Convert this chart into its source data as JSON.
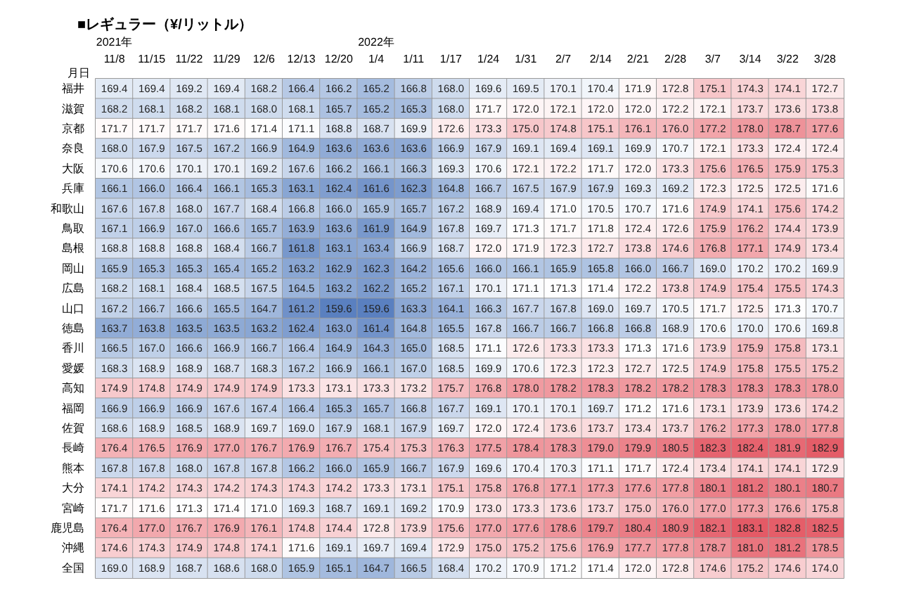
{
  "chart_data": {
    "type": "heatmap",
    "title": "■レギュラー（¥/リットル）",
    "xlabel": "月日",
    "data_labels": true,
    "categories": [
      "2021年\n11/8",
      "11/15",
      "11/22",
      "11/29",
      "12/6",
      "12/13",
      "12/20",
      "2022年\n1/4",
      "1/11",
      "1/17",
      "1/24",
      "1/31",
      "2/7",
      "2/14",
      "2/21",
      "2/28",
      "3/7",
      "3/14",
      "3/22",
      "3/28"
    ],
    "y_categories": [
      "福井",
      "滋賀",
      "京都",
      "奈良",
      "大阪",
      "兵庫",
      "和歌山",
      "鳥取",
      "島根",
      "岡山",
      "広島",
      "山口",
      "徳島",
      "香川",
      "愛媛",
      "高知",
      "福岡",
      "佐賀",
      "長崎",
      "熊本",
      "大分",
      "宮崎",
      "鹿児島",
      "沖縄",
      "全国"
    ],
    "cells": [
      [
        169.4,
        169.4,
        169.2,
        169.4,
        168.2,
        166.4,
        166.2,
        165.2,
        166.8,
        168.0,
        169.6,
        169.5,
        170.1,
        170.4,
        171.9,
        172.8,
        175.1,
        174.3,
        174.1,
        172.7
      ],
      [
        168.2,
        168.1,
        168.2,
        168.1,
        168.0,
        168.1,
        165.7,
        165.2,
        165.3,
        168.0,
        171.7,
        172.0,
        172.1,
        172.0,
        172.0,
        172.2,
        172.1,
        173.7,
        173.6,
        173.8
      ],
      [
        171.7,
        171.7,
        171.7,
        171.6,
        171.4,
        171.1,
        168.8,
        168.7,
        169.9,
        172.6,
        173.3,
        175.0,
        174.8,
        175.1,
        176.1,
        176.0,
        177.2,
        178.0,
        178.7,
        177.6
      ],
      [
        168.0,
        167.9,
        167.5,
        167.2,
        166.9,
        164.9,
        163.6,
        163.6,
        163.6,
        166.9,
        167.9,
        169.1,
        169.4,
        169.1,
        169.9,
        170.7,
        172.1,
        173.3,
        172.4,
        172.4
      ],
      [
        170.6,
        170.6,
        170.1,
        170.1,
        169.2,
        167.6,
        166.2,
        166.1,
        166.3,
        169.3,
        170.6,
        172.1,
        172.2,
        171.7,
        172.0,
        173.3,
        175.6,
        176.5,
        175.9,
        175.3
      ],
      [
        166.1,
        166.0,
        166.4,
        166.1,
        165.3,
        163.1,
        162.4,
        161.6,
        162.3,
        164.8,
        166.7,
        167.5,
        167.9,
        167.9,
        169.3,
        169.2,
        172.3,
        172.5,
        172.5,
        171.6
      ],
      [
        167.6,
        167.8,
        168.0,
        167.7,
        168.4,
        166.8,
        166.0,
        165.9,
        165.7,
        167.2,
        168.9,
        169.4,
        171.0,
        170.5,
        170.7,
        171.6,
        174.9,
        174.1,
        175.6,
        174.2
      ],
      [
        167.1,
        166.9,
        167.0,
        166.6,
        165.7,
        163.9,
        163.6,
        161.9,
        164.9,
        167.8,
        169.7,
        171.3,
        171.7,
        171.8,
        172.4,
        172.6,
        175.9,
        176.2,
        174.4,
        173.9
      ],
      [
        168.8,
        168.8,
        168.8,
        168.4,
        166.7,
        161.8,
        163.1,
        163.4,
        166.9,
        168.7,
        172.0,
        171.9,
        172.3,
        172.7,
        173.8,
        174.6,
        176.8,
        177.1,
        174.9,
        173.4
      ],
      [
        165.9,
        165.3,
        165.3,
        165.4,
        165.2,
        163.2,
        162.9,
        162.3,
        164.2,
        165.6,
        166.0,
        166.1,
        165.9,
        165.8,
        166.0,
        166.7,
        169.0,
        170.2,
        170.2,
        169.9
      ],
      [
        168.2,
        168.1,
        168.4,
        168.5,
        167.5,
        164.5,
        163.2,
        162.2,
        165.2,
        167.1,
        170.1,
        171.1,
        171.3,
        171.4,
        172.2,
        173.8,
        174.9,
        175.4,
        175.5,
        174.3
      ],
      [
        167.2,
        166.7,
        166.6,
        165.5,
        164.7,
        161.2,
        159.6,
        159.6,
        163.3,
        164.1,
        166.3,
        167.7,
        167.8,
        169.0,
        169.7,
        170.5,
        171.7,
        172.5,
        171.3,
        170.7
      ],
      [
        163.7,
        163.8,
        163.5,
        163.5,
        163.2,
        162.4,
        163.0,
        161.4,
        164.8,
        165.5,
        167.8,
        166.7,
        166.7,
        166.8,
        166.8,
        168.9,
        170.6,
        170.0,
        170.6,
        169.8
      ],
      [
        166.5,
        167.0,
        166.6,
        166.9,
        166.7,
        166.4,
        164.9,
        164.3,
        165.0,
        168.5,
        171.1,
        172.6,
        173.3,
        173.3,
        171.3,
        171.6,
        173.9,
        175.9,
        175.8,
        173.1
      ],
      [
        168.3,
        168.9,
        168.9,
        168.7,
        168.3,
        167.2,
        166.9,
        166.1,
        167.0,
        168.5,
        169.9,
        170.6,
        172.3,
        172.3,
        172.7,
        172.5,
        174.9,
        175.8,
        175.5,
        175.2
      ],
      [
        174.9,
        174.8,
        174.9,
        174.9,
        174.9,
        173.3,
        173.1,
        173.3,
        173.2,
        175.7,
        176.8,
        178.0,
        178.2,
        178.3,
        178.2,
        178.2,
        178.3,
        178.3,
        178.3,
        178.0
      ],
      [
        166.9,
        166.9,
        166.9,
        167.6,
        167.4,
        166.4,
        165.3,
        165.7,
        166.8,
        167.7,
        169.1,
        170.1,
        170.1,
        169.7,
        171.2,
        171.6,
        173.1,
        173.9,
        173.6,
        174.2
      ],
      [
        168.6,
        168.9,
        168.5,
        168.9,
        169.7,
        169.0,
        167.9,
        168.1,
        167.9,
        169.7,
        172.0,
        172.4,
        173.6,
        173.7,
        173.4,
        173.7,
        176.2,
        177.3,
        178.0,
        177.8
      ],
      [
        176.4,
        176.5,
        176.9,
        177.0,
        176.7,
        176.9,
        176.7,
        175.4,
        175.3,
        176.3,
        177.5,
        178.4,
        178.3,
        179.0,
        179.9,
        180.5,
        182.3,
        182.4,
        181.9,
        182.9
      ],
      [
        167.8,
        167.8,
        168.0,
        167.8,
        167.8,
        166.2,
        166.0,
        165.9,
        166.7,
        167.9,
        169.6,
        170.4,
        170.3,
        171.1,
        171.7,
        172.4,
        173.4,
        174.1,
        174.1,
        172.9
      ],
      [
        174.1,
        174.2,
        174.3,
        174.2,
        174.3,
        174.3,
        174.2,
        173.3,
        173.1,
        175.1,
        175.8,
        176.8,
        177.1,
        177.3,
        177.6,
        177.8,
        180.1,
        181.2,
        180.1,
        180.7
      ],
      [
        171.7,
        171.6,
        171.3,
        171.4,
        171.0,
        169.3,
        168.7,
        169.1,
        169.2,
        170.9,
        173.0,
        173.3,
        173.6,
        173.7,
        175.0,
        176.0,
        177.0,
        177.3,
        176.6,
        175.8
      ],
      [
        176.4,
        177.0,
        176.7,
        176.9,
        176.1,
        174.8,
        174.4,
        172.8,
        173.9,
        175.6,
        177.0,
        177.6,
        178.6,
        179.7,
        180.4,
        180.9,
        182.1,
        183.1,
        182.8,
        182.5
      ],
      [
        174.6,
        174.3,
        174.9,
        174.8,
        174.1,
        171.6,
        169.1,
        169.7,
        169.4,
        172.9,
        175.0,
        175.2,
        175.6,
        176.9,
        177.7,
        177.8,
        178.7,
        181.0,
        181.2,
        178.5
      ],
      [
        169.0,
        168.9,
        168.7,
        168.6,
        168.0,
        165.9,
        165.1,
        164.7,
        166.5,
        168.4,
        170.2,
        170.9,
        171.2,
        171.4,
        172.0,
        172.8,
        174.6,
        175.2,
        174.6,
        174.0
      ]
    ],
    "cell_labels": [
      [
        "169.4",
        "169.4",
        "169.2",
        "169.4",
        "168.2",
        "166.4",
        "166.2",
        "165.2",
        "166.8",
        "168.0",
        "169.6",
        "169.5",
        "170.1",
        "170.4",
        "171.9",
        "172.8",
        "175.1",
        "174.3",
        "174.1",
        "172.7"
      ],
      [
        "168.2",
        "168.1",
        "168.2",
        "168.1",
        "168.0",
        "168.1",
        "165.7",
        "165.2",
        "165.3",
        "168.0",
        "171.7",
        "172.0",
        "172.1",
        "172.0",
        "172.0",
        "172.2",
        "172.1",
        "173.7",
        "173.6",
        "173.8"
      ],
      [
        "171.7",
        "171.7",
        "171.7",
        "171.6",
        "171.4",
        "171.1",
        "168.8",
        "168.7",
        "169.9",
        "172.6",
        "173.3",
        "175.0",
        "174.8",
        "175.1",
        "176.1",
        "176.0",
        "177.2",
        "178.0",
        "178.7",
        "177.6"
      ],
      [
        "168.0",
        "167.9",
        "167.5",
        "167.2",
        "166.9",
        "164.9",
        "163.6",
        "163.6",
        "163.6",
        "166.9",
        "167.9",
        "169.1",
        "169.4",
        "169.1",
        "169.9",
        "170.7",
        "172.1",
        "173.3",
        "172.4",
        "172.4"
      ],
      [
        "170.6",
        "170.6",
        "170.1",
        "170.1",
        "169.2",
        "167.6",
        "166.2",
        "166.1",
        "166.3",
        "169.3",
        "170.6",
        "172.1",
        "172.2",
        "171.7",
        "172.0",
        "173.3",
        "175.6",
        "176.5",
        "175.9",
        "175.3"
      ],
      [
        "166.1",
        "166.0",
        "166.4",
        "166.1",
        "165.3",
        "163.1",
        "162.4",
        "161.6",
        "162.3",
        "164.8",
        "166.7",
        "167.5",
        "167.9",
        "167.9",
        "169.3",
        "169.2",
        "172.3",
        "172.5",
        "172.5",
        "171.6"
      ],
      [
        "167.6",
        "167.8",
        "168.0",
        "167.7",
        "168.4",
        "166.8",
        "166.0",
        "165.9",
        "165.7",
        "167.2",
        "168.9",
        "169.4",
        "171.0",
        "170.5",
        "170.7",
        "171.6",
        "174.9",
        "174.1",
        "175.6",
        "174.2"
      ],
      [
        "167.1",
        "166.9",
        "167.0",
        "166.6",
        "165.7",
        "163.9",
        "163.6",
        "161.9",
        "164.9",
        "167.8",
        "169.7",
        "171.3",
        "171.7",
        "171.8",
        "172.4",
        "172.6",
        "175.9",
        "176.2",
        "174.4",
        "173.9"
      ],
      [
        "168.8",
        "168.8",
        "168.8",
        "168.4",
        "166.7",
        "161.8",
        "163.1",
        "163.4",
        "166.9",
        "168.7",
        "172.0",
        "171.9",
        "172.3",
        "172.7",
        "173.8",
        "174.6",
        "176.8",
        "177.1",
        "174.9",
        "173.4"
      ],
      [
        "165.9",
        "165.3",
        "165.3",
        "165.4",
        "165.2",
        "163.2",
        "162.9",
        "162.3",
        "164.2",
        "165.6",
        "166.0",
        "166.1",
        "165.9",
        "165.8",
        "166.0",
        "166.7",
        "169.0",
        "170.2",
        "170.2",
        "169.9"
      ],
      [
        "168.2",
        "168.1",
        "168.4",
        "168.5",
        "167.5",
        "164.5",
        "163.2",
        "162.2",
        "165.2",
        "167.1",
        "170.1",
        "171.1",
        "171.3",
        "171.4",
        "172.2",
        "173.8",
        "174.9",
        "175.4",
        "175.5",
        "174.3"
      ],
      [
        "167.2",
        "166.7",
        "166.6",
        "165.5",
        "164.7",
        "161.2",
        "159.6",
        "159.6",
        "163.3",
        "164.1",
        "166.3",
        "167.7",
        "167.8",
        "169.0",
        "169.7",
        "170.5",
        "171.7",
        "172.5",
        "171.3",
        "170.7"
      ],
      [
        "163.7",
        "163.8",
        "163.5",
        "163.5",
        "163.2",
        "162.4",
        "163.0",
        "161.4",
        "164.8",
        "165.5",
        "167.8",
        "166.7",
        "166.7",
        "166.8",
        "166.8",
        "168.9",
        "170.6",
        "170.0",
        "170.6",
        "169.8"
      ],
      [
        "166.5",
        "167.0",
        "166.6",
        "166.9",
        "166.7",
        "166.4",
        "164.9",
        "164.3",
        "165.0",
        "168.5",
        "171.1",
        "172.6",
        "173.3",
        "173.3",
        "171.3",
        "171.6",
        "173.9",
        "175.9",
        "175.8",
        "173.1"
      ],
      [
        "168.3",
        "168.9",
        "168.9",
        "168.7",
        "168.3",
        "167.2",
        "166.9",
        "166.1",
        "167.0",
        "168.5",
        "169.9",
        "170.6",
        "172.3",
        "172.3",
        "172.7",
        "172.5",
        "174.9",
        "175.8",
        "175.5",
        "175.2"
      ],
      [
        "174.9",
        "174.8",
        "174.9",
        "174.9",
        "174.9",
        "173.3",
        "173.1",
        "173.3",
        "173.2",
        "175.7",
        "176.8",
        "178.0",
        "178.2",
        "178.3",
        "178.2",
        "178.2",
        "178.3",
        "178.3",
        "178.3",
        "178.0"
      ],
      [
        "166.9",
        "166.9",
        "166.9",
        "167.6",
        "167.4",
        "166.4",
        "165.3",
        "165.7",
        "166.8",
        "167.7",
        "169.1",
        "170.1",
        "170.1",
        "169.7",
        "171.2",
        "171.6",
        "173.1",
        "173.9",
        "173.6",
        "174.2"
      ],
      [
        "168.6",
        "168.9",
        "168.5",
        "168.9",
        "169.7",
        "169.0",
        "167.9",
        "168.1",
        "167.9",
        "169.7",
        "172.0",
        "172.4",
        "173.6",
        "173.7",
        "173.4",
        "173.7",
        "176.2",
        "177.3",
        "178.0",
        "177.8"
      ],
      [
        "176.4",
        "176.5",
        "176.9",
        "177.0",
        "176.7",
        "176.9",
        "176.7",
        "175.4",
        "175.3",
        "176.3",
        "177.5",
        "178.4",
        "178.3",
        "179.0",
        "179.9",
        "180.5",
        "182.3",
        "182.4",
        "181.9",
        "182.9"
      ],
      [
        "167.8",
        "167.8",
        "168.0",
        "167.8",
        "167.8",
        "166.2",
        "166.0",
        "165.9",
        "166.7",
        "167.9",
        "169.6",
        "170.4",
        "170.3",
        "171.1",
        "171.7",
        "172.4",
        "173.4",
        "174.1",
        "174.1",
        "172.9"
      ],
      [
        "174.1",
        "174.2",
        "174.3",
        "174.2",
        "174.3",
        "174.3",
        "174.2",
        "173.3",
        "173.1",
        "175.1",
        "175.8",
        "176.8",
        "177.1",
        "177.3",
        "177.6",
        "177.8",
        "180.1",
        "181.2",
        "180.1",
        "180.7"
      ],
      [
        "171.7",
        "171.6",
        "171.3",
        "171.4",
        "171.0",
        "169.3",
        "168.7",
        "169.1",
        "169.2",
        "170.9",
        "173.0",
        "173.3",
        "173.6",
        "173.7",
        "175.0",
        "176.0",
        "177.0",
        "177.3",
        "176.6",
        "175.8"
      ],
      [
        "176.4",
        "177.0",
        "176.7",
        "176.9",
        "176.1",
        "174.8",
        "174.4",
        "172.8",
        "173.9",
        "175.6",
        "177.0",
        "177.6",
        "178.6",
        "179.7",
        "180.4",
        "180.9",
        "182.1",
        "183.1",
        "182.8",
        "182.5"
      ],
      [
        "174.6",
        "174.3",
        "174.9",
        "174.8",
        "174.1",
        "171.6",
        "169.1",
        "169.7",
        "169.4",
        "172.9",
        "175.0",
        "175.2",
        "175.6",
        "176.9",
        "177.7",
        "177.8",
        "178.7",
        "181.0",
        "181.2",
        "178.5"
      ],
      [
        "169.0",
        "168.9",
        "168.7",
        "168.6",
        "168.0",
        "165.9",
        "165.1",
        "164.7",
        "166.5",
        "168.4",
        "170.2",
        "170.9",
        "171.2",
        "171.4",
        "172.0",
        "172.8",
        "174.6",
        "175.2",
        "174.6",
        "174.0"
      ]
    ]
  }
}
